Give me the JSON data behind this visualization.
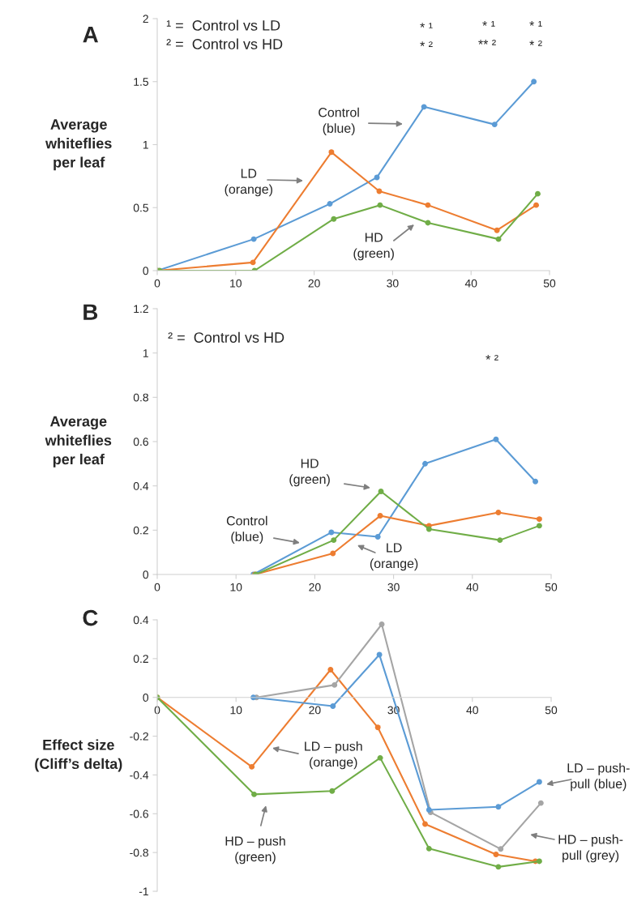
{
  "chart_data": [
    {
      "type": "line",
      "title": "A",
      "ylabel": "Average\nwhiteflies\nper leaf",
      "xlim": [
        0,
        50
      ],
      "xticks": [
        0,
        10,
        20,
        30,
        40,
        50
      ],
      "ylim": [
        0,
        2
      ],
      "yticks": [
        0,
        0.5,
        1,
        1.5,
        2
      ],
      "marker": "circle",
      "line_style": "solid",
      "series": [
        {
          "color": "#5b9bd5",
          "x": [
            0,
            12.3,
            22,
            28,
            34,
            43,
            48
          ],
          "values": [
            0,
            0.25,
            0.53,
            0.74,
            1.3,
            1.16,
            1.5
          ]
        },
        {
          "color": "#ed7d31",
          "x": [
            0,
            12.2,
            22.2,
            28.3,
            34.5,
            43.3,
            48.3
          ],
          "values": [
            0,
            0.065,
            0.94,
            0.63,
            0.52,
            0.32,
            0.52
          ]
        },
        {
          "color": "#70ad47",
          "x": [
            0.3,
            12.4,
            22.5,
            28.4,
            34.5,
            43.5,
            48.5
          ],
          "values": [
            0,
            0,
            0.41,
            0.52,
            0.38,
            0.25,
            0.61
          ]
        }
      ],
      "annotations": [
        "¹ =  Control vs LD",
        "² =  Control vs HD",
        "* ¹",
        "* ²",
        "* ¹",
        "** ²",
        "* ¹",
        "* ²",
        "Control\n(blue)",
        "LD\n(orange)",
        "HD\n(green)"
      ]
    },
    {
      "type": "line",
      "title": "B",
      "ylabel": "Average\nwhiteflies\nper leaf",
      "xlim": [
        0,
        50
      ],
      "xticks": [
        0,
        10,
        20,
        30,
        40,
        50
      ],
      "ylim": [
        0,
        1.2
      ],
      "yticks": [
        0,
        0.2,
        0.4,
        0.6,
        0.8,
        1,
        1.2
      ],
      "marker": "circle",
      "line_style": "solid",
      "series": [
        {
          "color": "#5b9bd5",
          "x": [
            12.2,
            22.1,
            28,
            34,
            43,
            48
          ],
          "values": [
            0,
            0.19,
            0.17,
            0.5,
            0.61,
            0.42
          ]
        },
        {
          "color": "#ed7d31",
          "x": [
            12.4,
            22.3,
            28.3,
            34.5,
            43.3,
            48.5
          ],
          "values": [
            0,
            0.095,
            0.265,
            0.22,
            0.28,
            0.25
          ]
        },
        {
          "color": "#70ad47",
          "x": [
            12.5,
            22.4,
            28.4,
            34.5,
            43.5,
            48.5
          ],
          "values": [
            0,
            0.155,
            0.375,
            0.205,
            0.155,
            0.22
          ]
        }
      ],
      "annotations": [
        "² =  Control vs HD",
        "* ²",
        "HD\n(green)",
        "Control\n(blue)",
        "LD\n(orange)"
      ]
    },
    {
      "type": "line",
      "title": "C",
      "ylabel": "Effect size\n(Cliff’s delta)",
      "xlim": [
        0,
        50
      ],
      "xticks": [
        0,
        10,
        20,
        30,
        40,
        50
      ],
      "ylim": [
        -1,
        0.4
      ],
      "yticks": [
        -1,
        -0.8,
        -0.6,
        -0.4,
        -0.2,
        0,
        0.2,
        0.4
      ],
      "marker": "circle",
      "line_style": "solid",
      "series": [
        {
          "color": "#ed7d31",
          "x": [
            0,
            12,
            22,
            28,
            34,
            43,
            48
          ],
          "values": [
            0,
            -0.358,
            0.143,
            -0.155,
            -0.653,
            -0.81,
            -0.845
          ]
        },
        {
          "color": "#70ad47",
          "x": [
            0,
            12.3,
            22.2,
            28.3,
            34.5,
            43.3,
            48.5
          ],
          "values": [
            0,
            -0.5,
            -0.483,
            -0.312,
            -0.78,
            -0.874,
            -0.845
          ]
        },
        {
          "color": "#a5a5a5",
          "x": [
            12.6,
            22.5,
            28.5,
            34.7,
            43.6,
            48.7
          ],
          "values": [
            0,
            0.064,
            0.377,
            -0.593,
            -0.782,
            -0.545
          ]
        },
        {
          "color": "#5b9bd5",
          "x": [
            12.2,
            22.3,
            28.2,
            34.5,
            43.3,
            48.5
          ],
          "values": [
            0,
            -0.045,
            0.22,
            -0.58,
            -0.564,
            -0.436
          ]
        }
      ],
      "annotations": [
        "LD – push\n(orange)",
        "HD – push\n(green)",
        "LD – push-\npull (blue)",
        "HD – push-\npull (grey)"
      ]
    }
  ]
}
